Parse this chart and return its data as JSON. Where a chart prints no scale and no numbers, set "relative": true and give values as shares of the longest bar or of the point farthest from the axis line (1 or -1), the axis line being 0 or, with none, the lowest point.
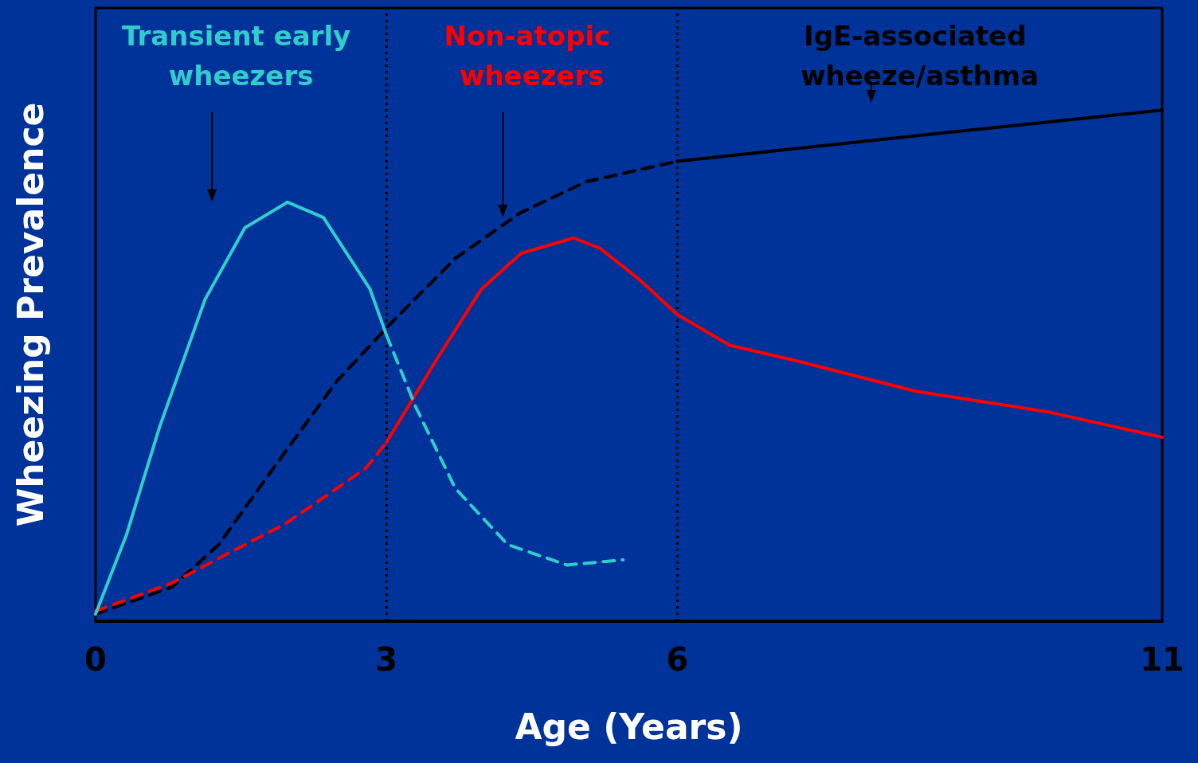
{
  "chart_data": {
    "type": "line",
    "relative": true,
    "xlabel": "Age (Years)",
    "ylabel": "Wheezing Prevalence",
    "xlim": [
      0,
      11
    ],
    "xticks": [
      0,
      3,
      6,
      11
    ],
    "grid": false,
    "legend": false,
    "marker": "none",
    "ref_lines": [
      {
        "axis": "x",
        "value": 3,
        "color": "#000000",
        "line_style": "dotted"
      },
      {
        "axis": "x",
        "value": 6,
        "color": "#000000",
        "line_style": "dotted"
      }
    ],
    "series": [
      {
        "name": "Transient early wheezers",
        "color": "#33cccc",
        "line_style": "solid",
        "x": [
          0,
          0.32,
          0.66,
          1.13,
          1.54,
          1.98,
          2.35,
          2.83,
          3.0
        ],
        "values": [
          0.014,
          0.17,
          0.38,
          0.63,
          0.77,
          0.82,
          0.79,
          0.65,
          0.56
        ]
      },
      {
        "color": "#33cccc",
        "line_style": "dashed",
        "x": [
          3.0,
          3.3,
          3.71,
          4.25,
          4.86,
          5.44
        ],
        "values": [
          0.56,
          0.42,
          0.26,
          0.15,
          0.11,
          0.12
        ]
      },
      {
        "name": "Non-atopic wheezers",
        "color": "#ff0000",
        "line_style": "solid",
        "x": [
          3.0,
          3.51,
          3.98,
          4.39,
          4.93,
          5.2,
          5.6,
          6.0,
          6.54,
          7.22,
          8.46,
          9.81,
          11
        ],
        "values": [
          0.35,
          0.51,
          0.65,
          0.72,
          0.75,
          0.73,
          0.67,
          0.6,
          0.54,
          0.51,
          0.45,
          0.41,
          0.36
        ]
      },
      {
        "color": "#ff0000",
        "line_style": "dashed",
        "x": [
          0,
          0.79,
          1.34,
          1.95,
          2.49,
          2.79,
          3.0
        ],
        "values": [
          0.02,
          0.075,
          0.13,
          0.19,
          0.26,
          0.3,
          0.35
        ]
      },
      {
        "name": "IgE-associated wheeze/asthma",
        "color": "#000000",
        "line_style": "solid",
        "x": [
          6,
          8.46,
          11
        ],
        "values": [
          0.9,
          0.95,
          1.0
        ]
      },
      {
        "color": "#000000",
        "line_style": "dashed",
        "x": [
          0,
          0.79,
          1.27,
          1.95,
          2.49,
          3.03,
          3.71,
          4.39,
          5.06,
          6
        ],
        "values": [
          0.014,
          0.067,
          0.15,
          0.33,
          0.47,
          0.58,
          0.71,
          0.8,
          0.86,
          0.9
        ]
      }
    ]
  }
}
